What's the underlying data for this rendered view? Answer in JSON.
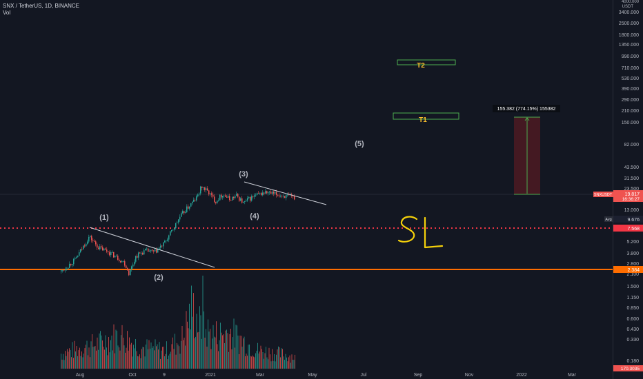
{
  "header": {
    "symbol": "SNX / TetherUS, 1D, BINANCE",
    "volume_label": "Vol"
  },
  "colors": {
    "background": "#131722",
    "up": "#26a69a",
    "down": "#ef5350",
    "support": "#ff6d00",
    "stop": "#f23645",
    "target_box": "#4caf50",
    "target_text": "#fbc02d",
    "wave_label": "#b2b5be",
    "handwriting": "#f5d10a",
    "measure_fill": "#4a1a22"
  },
  "chart_data": {
    "type": "candlestick",
    "scale": "log",
    "x_ticks": [
      "Aug",
      "Oct",
      "9",
      "2021",
      "Mar",
      "May",
      "Jul",
      "Sep",
      "Nov",
      "2022",
      "Mar"
    ],
    "price_axis": {
      "unit_label": "USDT",
      "top_label": "4000.000",
      "ticks": [
        "3400.000",
        "2500.000",
        "1800.000",
        "1350.000",
        "990.000",
        "710.000",
        "530.000",
        "390.000",
        "290.000",
        "210.000",
        "150.000",
        "82.000",
        "43.500",
        "31.500",
        "23.500",
        "13.000",
        "5.200",
        "3.800",
        "2.800",
        "2.100",
        "1.500",
        "1.150",
        "0.850",
        "0.600",
        "0.430",
        "0.330",
        "0.180"
      ]
    },
    "price_labels": {
      "symbol_tag": "SNXUSDT",
      "last_price": "19.817",
      "countdown": "16:36:27",
      "avg_label": "Avg",
      "avg_value": "9.676",
      "stop_value": "7.568",
      "support_value": "2.384",
      "bottom_value": "170.3035"
    },
    "price_path": [
      [
        0,
        2.6
      ],
      [
        0.06,
        3.6
      ],
      [
        0.12,
        6.8
      ],
      [
        0.16,
        5.0
      ],
      [
        0.2,
        4.5
      ],
      [
        0.24,
        3.8
      ],
      [
        0.27,
        3.3
      ],
      [
        0.29,
        2.45
      ],
      [
        0.32,
        4.0
      ],
      [
        0.36,
        4.6
      ],
      [
        0.4,
        4.4
      ],
      [
        0.44,
        5.6
      ],
      [
        0.48,
        8.5
      ],
      [
        0.51,
        12
      ],
      [
        0.54,
        15
      ],
      [
        0.58,
        20
      ],
      [
        0.6,
        27
      ],
      [
        0.63,
        23
      ],
      [
        0.66,
        18
      ],
      [
        0.69,
        22
      ],
      [
        0.72,
        19
      ],
      [
        0.75,
        21
      ],
      [
        0.78,
        17
      ],
      [
        0.8,
        19
      ],
      [
        0.83,
        21
      ],
      [
        0.87,
        23
      ],
      [
        1.0,
        19.8
      ]
    ],
    "volume_profile": [
      [
        0,
        0.25
      ],
      [
        0.15,
        0.4
      ],
      [
        0.25,
        0.55
      ],
      [
        0.34,
        0.35
      ],
      [
        0.45,
        0.3
      ],
      [
        0.52,
        0.5
      ],
      [
        0.56,
        1.0
      ],
      [
        0.6,
        0.65
      ],
      [
        0.66,
        0.55
      ],
      [
        0.72,
        0.6
      ],
      [
        0.78,
        0.45
      ],
      [
        0.84,
        0.3
      ],
      [
        0.92,
        0.25
      ],
      [
        1.0,
        0.2
      ]
    ],
    "wave_labels": [
      "(1)",
      "(2)",
      "(3)",
      "(4)",
      "(5)"
    ],
    "targets": [
      "T1",
      "T2"
    ],
    "measure_label": "155.382 (774.15%) 155382",
    "handwritten_note": "SL"
  }
}
